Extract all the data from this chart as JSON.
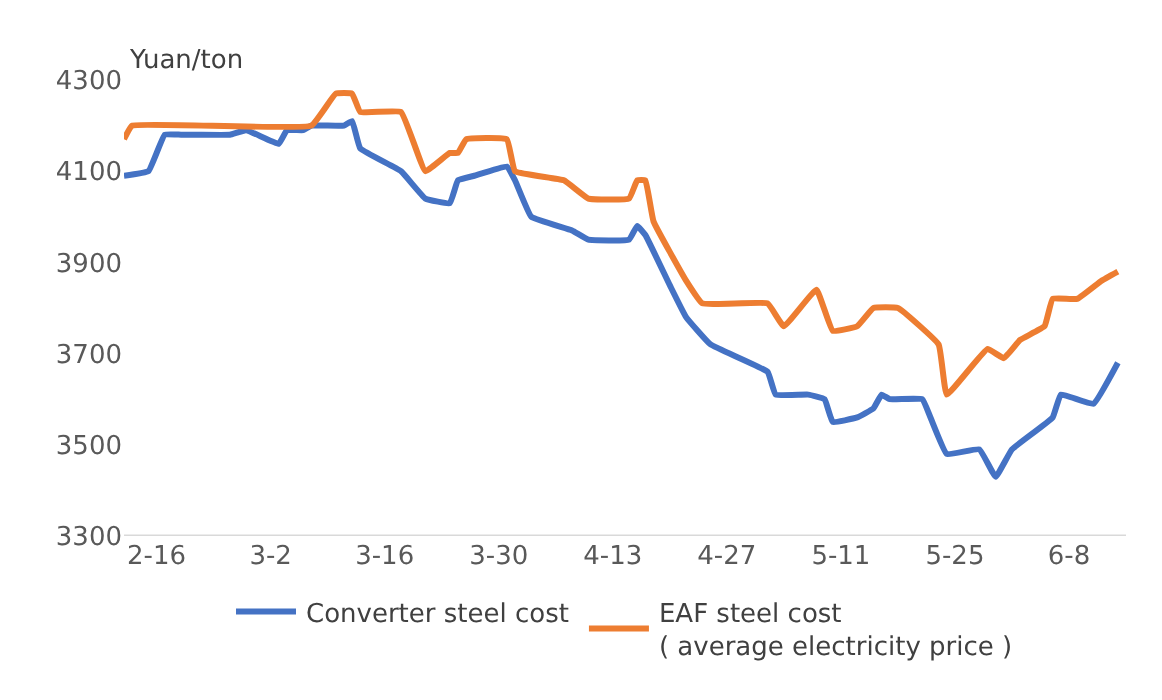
{
  "chart_data": {
    "type": "line",
    "ylabel": "Yuan/ton",
    "ylim": [
      3300,
      4300
    ],
    "yticks": [
      3300,
      3500,
      3700,
      3900,
      4100,
      4300
    ],
    "xlim": [
      "--02-12",
      "--06-15"
    ],
    "xticks": [
      {
        "value": "--02-16",
        "label": "2-16"
      },
      {
        "value": "--03-02",
        "label": "3-2"
      },
      {
        "value": "--03-16",
        "label": "3-16"
      },
      {
        "value": "--03-30",
        "label": "3-30"
      },
      {
        "value": "--04-13",
        "label": "4-13"
      },
      {
        "value": "--04-27",
        "label": "4-27"
      },
      {
        "value": "--05-11",
        "label": "5-11"
      },
      {
        "value": "--05-25",
        "label": "5-25"
      },
      {
        "value": "--06-08",
        "label": "6-8"
      }
    ],
    "legend": "bottom",
    "marker": "none",
    "line_style": "solid",
    "series": [
      {
        "name": "Converter steel cost",
        "color": "#4472c4",
        "x": [
          "--02-12",
          "--02-15",
          "--02-17",
          "--02-19",
          "--02-21",
          "--02-25",
          "--02-27",
          "--03-03",
          "--03-04",
          "--03-06",
          "--03-07",
          "--03-11",
          "--03-12",
          "--03-13",
          "--03-18",
          "--03-21",
          "--03-24",
          "--03-25",
          "--03-27",
          "--03-31",
          "--04-01",
          "--04-03",
          "--04-08",
          "--04-10",
          "--04-15",
          "--04-16",
          "--04-17",
          "--04-20",
          "--04-22",
          "--04-25",
          "--05-02",
          "--05-03",
          "--05-07",
          "--05-09",
          "--05-10",
          "--05-13",
          "--05-15",
          "--05-16",
          "--05-17",
          "--05-21",
          "--05-22",
          "--05-24",
          "--05-28",
          "--05-30",
          "--06-01",
          "--06-06",
          "--06-07",
          "--06-11",
          "--06-14"
        ],
        "values": [
          4090,
          4100,
          4180,
          4180,
          4180,
          4180,
          4190,
          4160,
          4190,
          4190,
          4200,
          4200,
          4210,
          4150,
          4100,
          4040,
          4030,
          4080,
          4090,
          4110,
          4080,
          4000,
          3970,
          3950,
          3950,
          3980,
          3960,
          3850,
          3780,
          3720,
          3660,
          3610,
          3610,
          3600,
          3550,
          3560,
          3580,
          3610,
          3600,
          3600,
          3560,
          3480,
          3490,
          3430,
          3490,
          3560,
          3610,
          3590,
          3680
        ]
      },
      {
        "name": "EAF steel cost\n( average electricity price )",
        "color": "#ed7d31",
        "x": [
          "--02-12",
          "--02-13",
          "--03-07",
          "--03-10",
          "--03-12",
          "--03-13",
          "--03-18",
          "--03-21",
          "--03-24",
          "--03-25",
          "--03-26",
          "--03-31",
          "--04-01",
          "--04-07",
          "--04-10",
          "--04-15",
          "--04-16",
          "--04-17",
          "--04-18",
          "--04-22",
          "--04-24",
          "--05-02",
          "--05-04",
          "--05-08",
          "--05-10",
          "--05-13",
          "--05-15",
          "--05-18",
          "--05-23",
          "--05-24",
          "--05-29",
          "--05-31",
          "--06-02",
          "--06-05",
          "--06-06",
          "--06-09",
          "--06-12",
          "--06-14"
        ],
        "values": [
          4170,
          4200,
          4200,
          4270,
          4270,
          4230,
          4230,
          4100,
          4140,
          4140,
          4170,
          4170,
          4100,
          4080,
          4040,
          4040,
          4080,
          4080,
          3990,
          3860,
          3810,
          3810,
          3760,
          3840,
          3750,
          3760,
          3800,
          3800,
          3720,
          3610,
          3710,
          3690,
          3730,
          3760,
          3820,
          3820,
          3860,
          3880
        ]
      }
    ]
  }
}
